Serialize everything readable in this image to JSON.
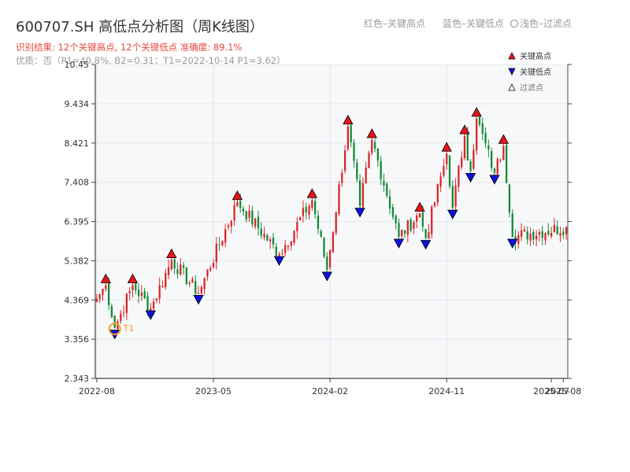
{
  "header": {
    "title": "600707.SH 高低点分析图（周K线图）",
    "result_line": "识别结果: 12个关键高点, 12个关键低点   准确度: 89.1%",
    "quality_line": "优质：否（P1=40.8%, B2=0.31；T1=2022-10-14 P1=3.62）",
    "legend_red": "红色–关键高点",
    "legend_blue": "蓝色–关键低点",
    "legend_filter": "浅色–过滤点"
  },
  "chart_data": {
    "type": "candlestick",
    "y_ticks": [
      "2.343",
      "3.356",
      "4.369",
      "5.382",
      "6.395",
      "7.408",
      "8.421",
      "9.434",
      "10.45"
    ],
    "ylim": [
      2.343,
      10.45
    ],
    "x_ticks": [
      {
        "label": "2022-08",
        "week": 0
      },
      {
        "label": "2023-05",
        "week": 39
      },
      {
        "label": "2024-02",
        "week": 78
      },
      {
        "label": "2024-11",
        "week": 117
      },
      {
        "label": "2025-07",
        "week": 152
      },
      {
        "label": "2025-08",
        "week": 156
      }
    ],
    "weeks_total": 158,
    "grid": true,
    "legend_position": "top-right",
    "legend": [
      "关键高点",
      "关键低点",
      "过滤点"
    ],
    "colors": {
      "up": "#d62728",
      "down": "#138a36",
      "high_marker": "#e8141b",
      "low_marker": "#1010dd",
      "t1_ring": "#f5a020",
      "t1_text": "#f5a020",
      "plot_bg": "#f7f8fa"
    },
    "key_points": [
      {
        "type": "high",
        "week": 3,
        "price": 4.75
      },
      {
        "type": "low",
        "week": 6,
        "price": 3.65
      },
      {
        "type": "high",
        "week": 12,
        "price": 4.75
      },
      {
        "type": "low",
        "week": 18,
        "price": 4.15
      },
      {
        "type": "high",
        "week": 25,
        "price": 5.4
      },
      {
        "type": "low",
        "week": 34,
        "price": 4.55
      },
      {
        "type": "high",
        "week": 47,
        "price": 6.9
      },
      {
        "type": "low",
        "week": 61,
        "price": 5.55
      },
      {
        "type": "high",
        "week": 72,
        "price": 6.95
      },
      {
        "type": "low",
        "week": 77,
        "price": 5.15
      },
      {
        "type": "high",
        "week": 84,
        "price": 8.85
      },
      {
        "type": "low",
        "week": 88,
        "price": 6.8
      },
      {
        "type": "high",
        "week": 92,
        "price": 8.5
      },
      {
        "type": "low",
        "week": 101,
        "price": 6.0
      },
      {
        "type": "high",
        "week": 108,
        "price": 6.6
      },
      {
        "type": "low",
        "week": 110,
        "price": 5.97
      },
      {
        "type": "high",
        "week": 117,
        "price": 8.15
      },
      {
        "type": "low",
        "week": 119,
        "price": 6.75
      },
      {
        "type": "high",
        "week": 123,
        "price": 8.6
      },
      {
        "type": "low",
        "week": 125,
        "price": 7.7
      },
      {
        "type": "high",
        "week": 127,
        "price": 9.05
      },
      {
        "type": "low",
        "week": 133,
        "price": 7.65
      },
      {
        "type": "high",
        "week": 136,
        "price": 8.35
      },
      {
        "type": "low",
        "week": 139,
        "price": 6.0
      }
    ],
    "t1": {
      "label": "T1",
      "week": 6,
      "price": 3.62
    }
  }
}
